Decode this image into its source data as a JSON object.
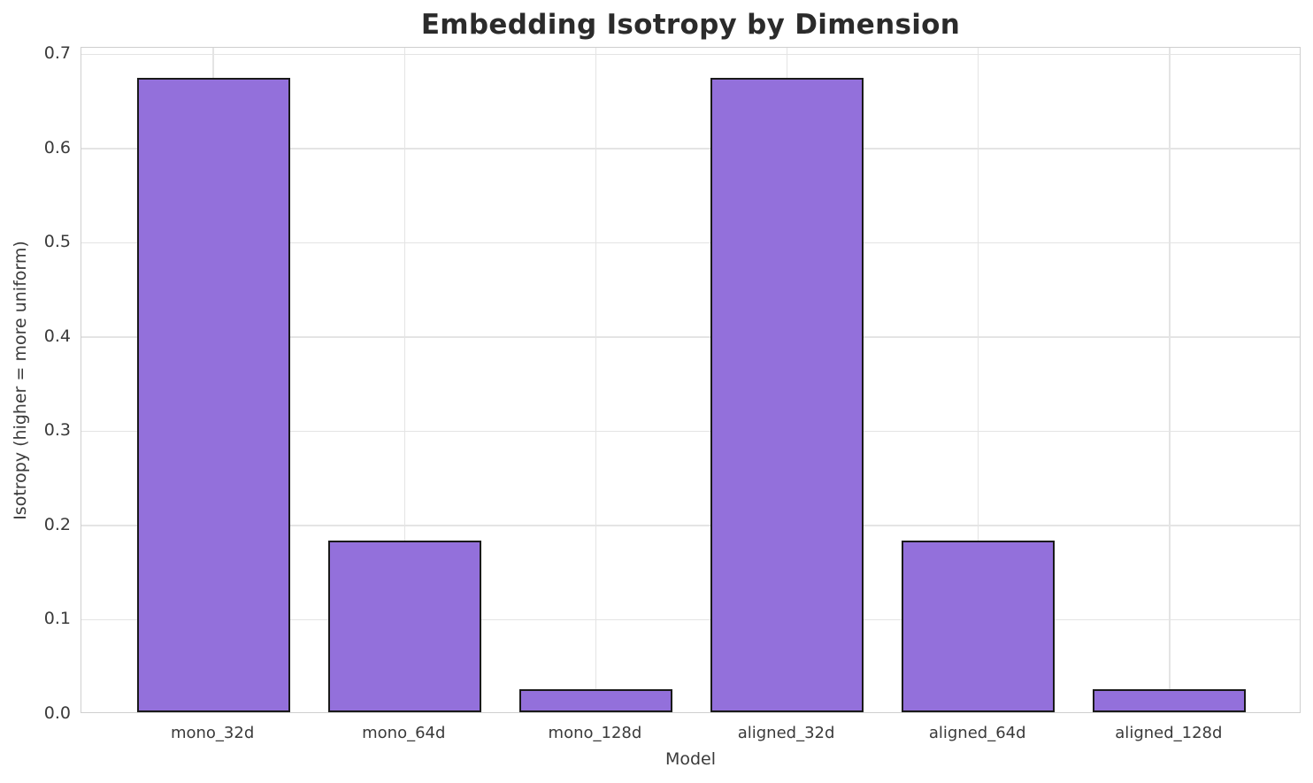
{
  "chart_data": {
    "type": "bar",
    "title": "Embedding Isotropy by Dimension",
    "xlabel": "Model",
    "ylabel": "Isotropy (higher = more uniform)",
    "categories": [
      "mono_32d",
      "mono_64d",
      "mono_128d",
      "aligned_32d",
      "aligned_64d",
      "aligned_128d"
    ],
    "values": [
      0.673,
      0.182,
      0.024,
      0.673,
      0.182,
      0.024
    ],
    "yticks": [
      0.0,
      0.1,
      0.2,
      0.3,
      0.4,
      0.5,
      0.6,
      0.7
    ],
    "ytick_labels": [
      "0.0",
      "0.1",
      "0.2",
      "0.3",
      "0.4",
      "0.5",
      "0.6",
      "0.7"
    ],
    "ylim": [
      0,
      0.707
    ],
    "xlim": [
      -0.69,
      5.69
    ],
    "bar_width_units": 0.8,
    "grid": "on",
    "legend": "none",
    "colors": {
      "bar_fill": "#9370DB",
      "bar_edge": "#1a1a1a",
      "grid": "#e4e4e4",
      "spine": "#cfcfcf",
      "title_text": "#2b2b2b",
      "tick_text": "#3a3a3a",
      "background": "#ffffff"
    }
  }
}
